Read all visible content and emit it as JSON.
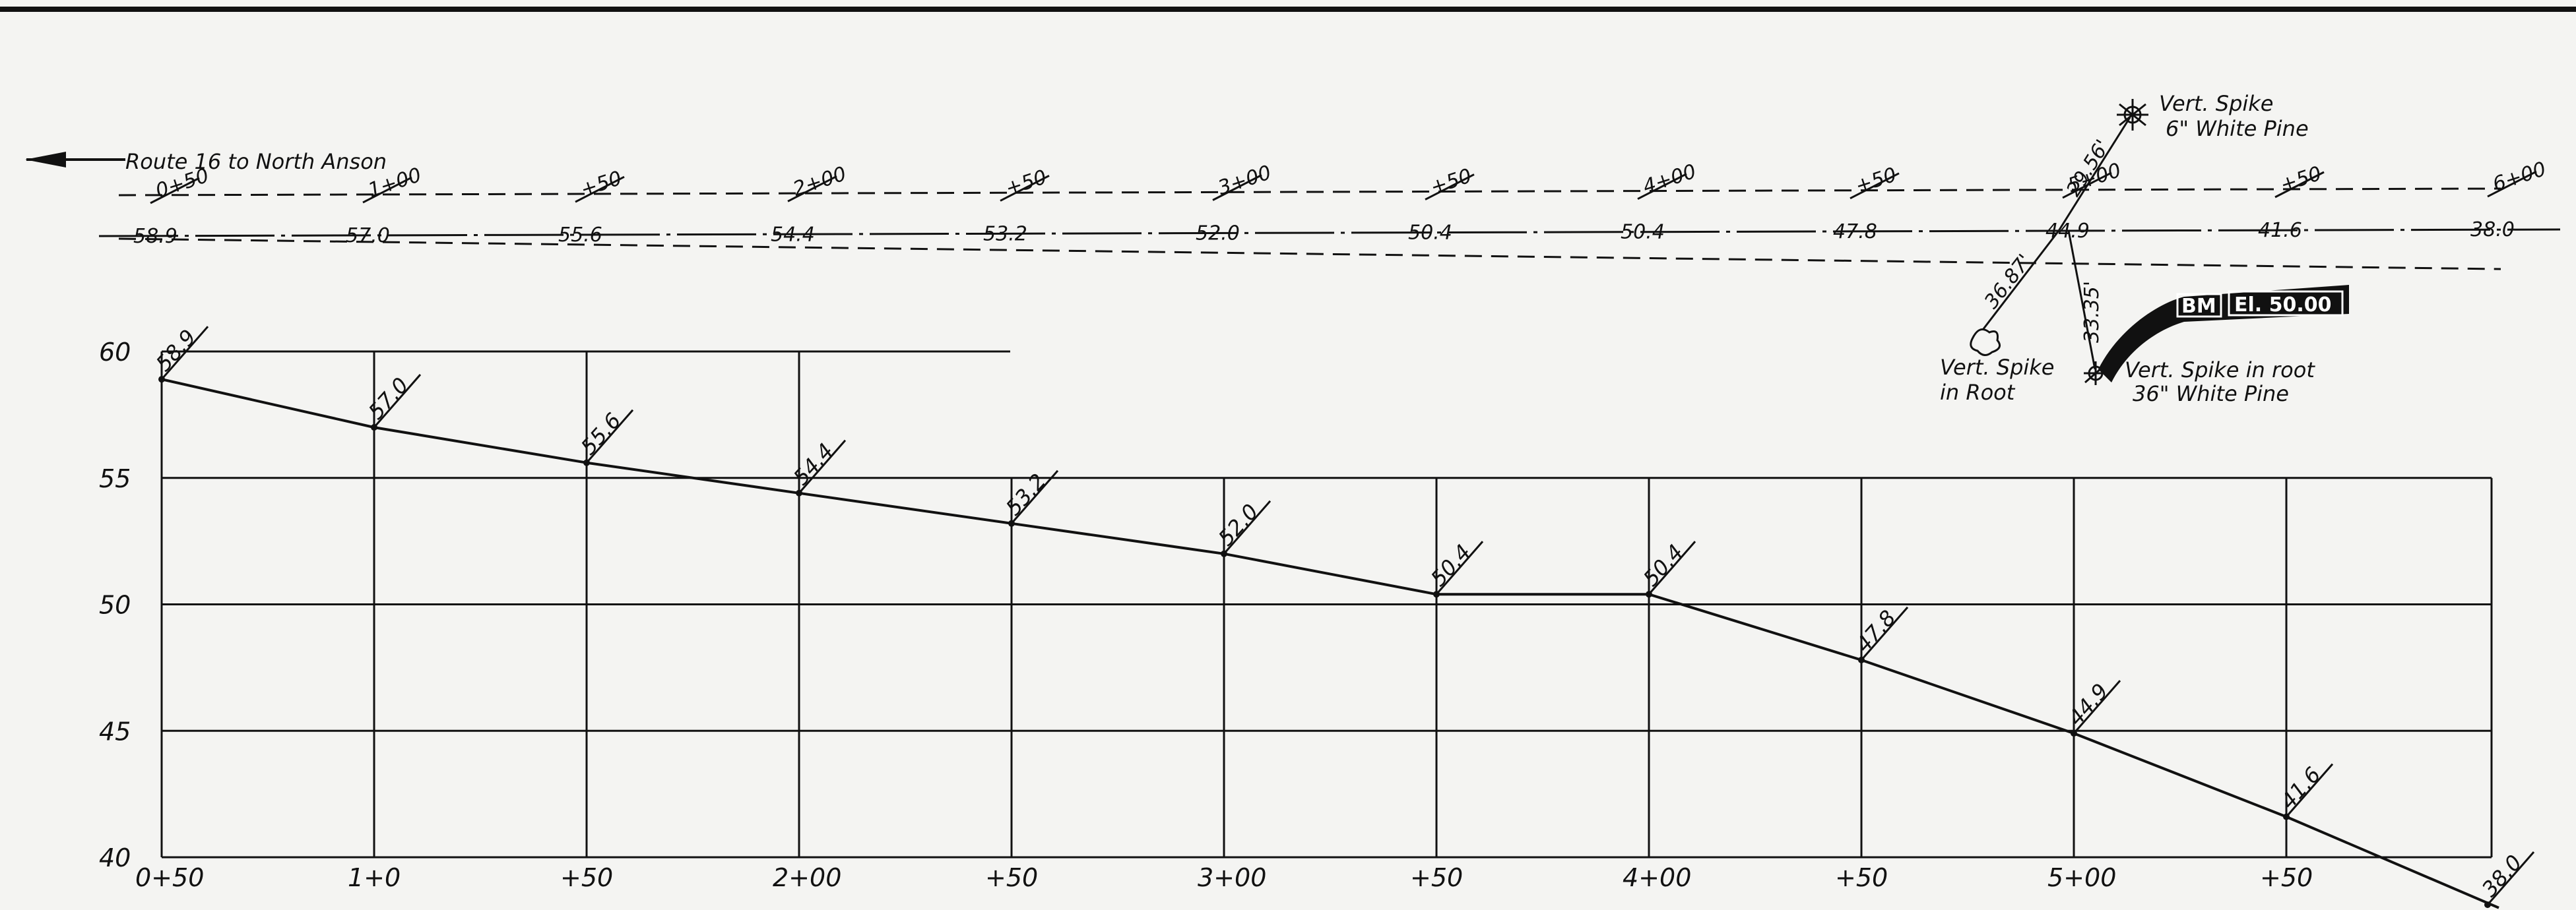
{
  "route_note": "Route 16 to North Anson",
  "plan_view": {
    "stations": [
      {
        "station": "0+50",
        "elevation": "58.9"
      },
      {
        "station": "1+00",
        "elevation": "57.0"
      },
      {
        "station": "+50",
        "elevation": "55.6"
      },
      {
        "station": "2+00",
        "elevation": "54.4"
      },
      {
        "station": "+50",
        "elevation": "53.2"
      },
      {
        "station": "3+00",
        "elevation": "52.0"
      },
      {
        "station": "+50",
        "elevation": "50.4"
      },
      {
        "station": "4+00",
        "elevation": "50.4"
      },
      {
        "station": "+50",
        "elevation": "47.8"
      },
      {
        "station": "5+00",
        "elevation": "44.9"
      },
      {
        "station": "+50",
        "elevation": "41.6"
      },
      {
        "station": "6+00",
        "elevation": "38.0"
      }
    ],
    "ties": [
      {
        "distance": "29.56'",
        "note_lines": [
          "Vert. Spike",
          "6\" White Pine"
        ]
      },
      {
        "distance": "36.87'",
        "note_lines": [
          "Vert. Spike",
          "in Root"
        ]
      },
      {
        "distance": "33.35'",
        "note_lines": [
          "Vert. Spike in root",
          "36\" White Pine"
        ]
      }
    ],
    "benchmark": {
      "tag": "BM",
      "elevation_label": "El. 50.00"
    }
  },
  "profile": {
    "x_tick_labels": [
      "0+50",
      "1+0",
      "+50",
      "2+00",
      "+50",
      "3+00",
      "+50",
      "4+00",
      "+50",
      "5+00",
      "+50"
    ],
    "y_tick_labels": [
      "60",
      "55",
      "50",
      "45",
      "40"
    ],
    "point_labels": [
      "58.9",
      "57.0",
      "55.6",
      "54.4",
      "53.2",
      "52.0",
      "50.4",
      "50.4",
      "47.8",
      "44.9",
      "41.6",
      "38.0"
    ]
  },
  "chart_data": {
    "type": "line",
    "x": [
      50,
      100,
      150,
      200,
      250,
      300,
      350,
      400,
      450,
      500,
      550,
      600
    ],
    "series": [
      {
        "values": [
          58.9,
          57.0,
          55.6,
          54.4,
          53.2,
          52.0,
          50.4,
          50.4,
          47.8,
          44.9,
          41.6,
          38.0
        ]
      }
    ],
    "ylim": [
      40,
      60
    ],
    "xlim": [
      50,
      600
    ],
    "grid": true
  },
  "colors": {
    "ink": "#111111",
    "paper": "#f4f4f2"
  }
}
